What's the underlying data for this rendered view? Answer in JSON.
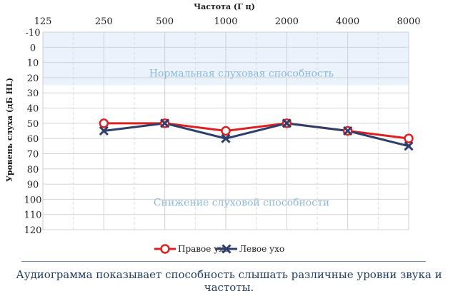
{
  "chart_data": {
    "type": "line",
    "title": "Частота (Г ц)",
    "ylabel": "Уровень слуха (дБ HL)",
    "x_ticks": [
      "125",
      "250",
      "500",
      "1000",
      "2000",
      "4000",
      "8000"
    ],
    "y_ticks": [
      "-10",
      "0",
      "10",
      "20",
      "30",
      "40",
      "50",
      "60",
      "70",
      "80",
      "90",
      "100",
      "110",
      "120"
    ],
    "ylim": [
      -10,
      120
    ],
    "y_inverted": true,
    "grid": true,
    "zones": [
      {
        "label": "Нормальная слуховая способность",
        "from": -10,
        "to": 25,
        "color": "#eaf3fb"
      },
      {
        "label": "Снижение слуховой способности",
        "from": 25,
        "to": 120,
        "color": "#ffffff"
      }
    ],
    "series": [
      {
        "name": "Правое ухо",
        "color": "#e02020",
        "marker": "circle",
        "x": [
          "250",
          "500",
          "1000",
          "2000",
          "4000",
          "8000"
        ],
        "values": [
          50,
          50,
          55,
          50,
          55,
          60
        ]
      },
      {
        "name": "Левое ухо",
        "color": "#2e3f6b",
        "marker": "x",
        "x": [
          "250",
          "500",
          "1000",
          "2000",
          "4000",
          "8000"
        ],
        "values": [
          55,
          50,
          60,
          50,
          55,
          65
        ]
      }
    ],
    "legend_position": "bottom"
  },
  "caption": "Аудиограмма показывает способность слышать различные уровни звука и частоты."
}
